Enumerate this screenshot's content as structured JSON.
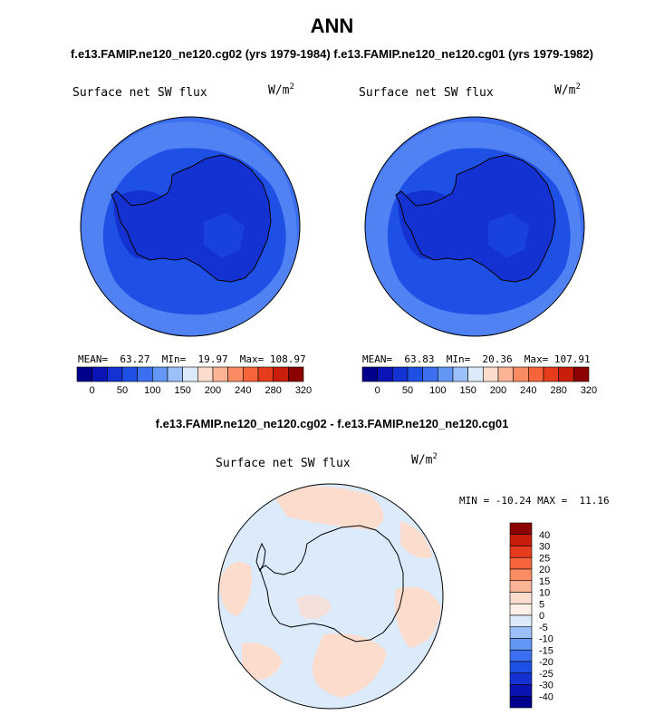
{
  "header": {
    "title": "ANN",
    "subtitle": "f.e13.FAMIP.ne120_ne120.cg02 (yrs 1979-1984)  f.e13.FAMIP.ne120_ne120.cg01 (yrs 1979-1982)",
    "diff_subtitle": "f.e13.FAMIP.ne120_ne120.cg02 - f.e13.FAMIP.ne120_ne120.cg01"
  },
  "panels": {
    "left": {
      "title": "Surface net SW flux",
      "units_base": "W/m",
      "units_exp": "2",
      "stats": "MEAN=  63.27  MIn=  19.97  Max= 108.97"
    },
    "right": {
      "title": "Surface net SW flux",
      "units_base": "W/m",
      "units_exp": "2",
      "stats": "MEAN=  63.83  MIn=  20.36  Max= 107.91"
    },
    "diff": {
      "title": "Surface net SW flux",
      "units_base": "W/m",
      "units_exp": "2",
      "stats": "MIN = -10.24 MAX =  11.16"
    }
  },
  "chart_data": [
    {
      "type": "heatmap",
      "title": "Surface net SW flux",
      "units": "W/m2",
      "projection": "south polar stereographic",
      "stats": {
        "mean": 63.27,
        "min": 19.97,
        "max": 108.97
      },
      "colorbar": {
        "levels": [
          0,
          25,
          50,
          75,
          100,
          125,
          150,
          175,
          200,
          220,
          240,
          260,
          280,
          300,
          320
        ],
        "tick_labels": [
          "0",
          "50",
          "100",
          "150",
          "200",
          "240",
          "280",
          "320"
        ],
        "colors": [
          "#00008c",
          "#0a14b4",
          "#1432d2",
          "#1e50e6",
          "#3c6ef0",
          "#6496f5",
          "#9cc0fa",
          "#dcebfc",
          "#fcdccc",
          "#fcb496",
          "#fa8c64",
          "#f5643c",
          "#e63c1e",
          "#c81e0a",
          "#8c0000"
        ]
      }
    },
    {
      "type": "heatmap",
      "title": "Surface net SW flux",
      "units": "W/m2",
      "projection": "south polar stereographic",
      "stats": {
        "mean": 63.83,
        "min": 20.36,
        "max": 107.91
      },
      "colorbar": {
        "levels": [
          0,
          25,
          50,
          75,
          100,
          125,
          150,
          175,
          200,
          220,
          240,
          260,
          280,
          300,
          320
        ],
        "tick_labels": [
          "0",
          "50",
          "100",
          "150",
          "200",
          "240",
          "280",
          "320"
        ],
        "colors": [
          "#00008c",
          "#0a14b4",
          "#1432d2",
          "#1e50e6",
          "#3c6ef0",
          "#6496f5",
          "#9cc0fa",
          "#dcebfc",
          "#fcdccc",
          "#fcb496",
          "#fa8c64",
          "#f5643c",
          "#e63c1e",
          "#c81e0a",
          "#8c0000"
        ]
      }
    },
    {
      "type": "heatmap",
      "title": "Surface net SW flux",
      "units": "W/m2",
      "projection": "south polar stereographic",
      "stats": {
        "min": -10.24,
        "max": 11.16
      },
      "colorbar": {
        "tick_labels": [
          "40",
          "30",
          "25",
          "20",
          "15",
          "10",
          "5",
          "0",
          "-5",
          "-10",
          "-15",
          "-20",
          "-25",
          "-30",
          "-40"
        ],
        "colors": [
          "#8c0000",
          "#c81e0a",
          "#e63c1e",
          "#f5643c",
          "#fa8c64",
          "#fcb496",
          "#fcdccc",
          "#fef0e6",
          "#dcebfc",
          "#9cc0fa",
          "#6496f5",
          "#3c6ef0",
          "#1e50e6",
          "#1432d2",
          "#0a14b4",
          "#00008c"
        ]
      }
    }
  ]
}
